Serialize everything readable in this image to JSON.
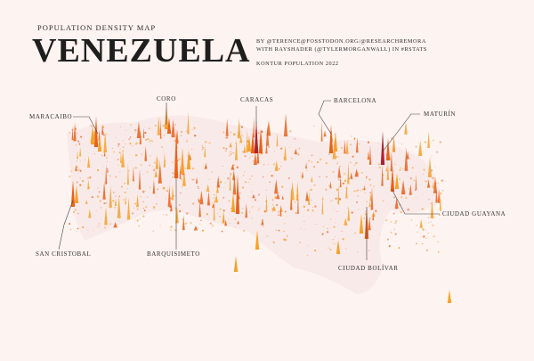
{
  "header": {
    "subtitle": "POPULATION DENSITY MAP",
    "title": "VENEZUELA",
    "credit_line1": "BY @TERENCE@FOSSTODON.ORG/@RESEARCHREMORA",
    "credit_line2": "WITH RAYSHADER (@TYLERMORGANWALL) IN #RSTATS",
    "credit_line3": "KONTUR POPULATION 2022"
  },
  "cities": [
    {
      "name": "CORO"
    },
    {
      "name": "CARACAS"
    },
    {
      "name": "BARCELONA"
    },
    {
      "name": "MARACAIBO"
    },
    {
      "name": "MATURÍN"
    },
    {
      "name": "CIUDAD GUAYANA"
    },
    {
      "name": "SAN CRISTOBAL"
    },
    {
      "name": "BARQUISIMETO"
    },
    {
      "name": "CIUDAD BOLÍVAR"
    }
  ],
  "colors": {
    "background": "#fdf3f1",
    "low": "#f5e2e4",
    "mid": "#f3a22b",
    "high": "#e8621a",
    "peak": "#b0202e"
  }
}
